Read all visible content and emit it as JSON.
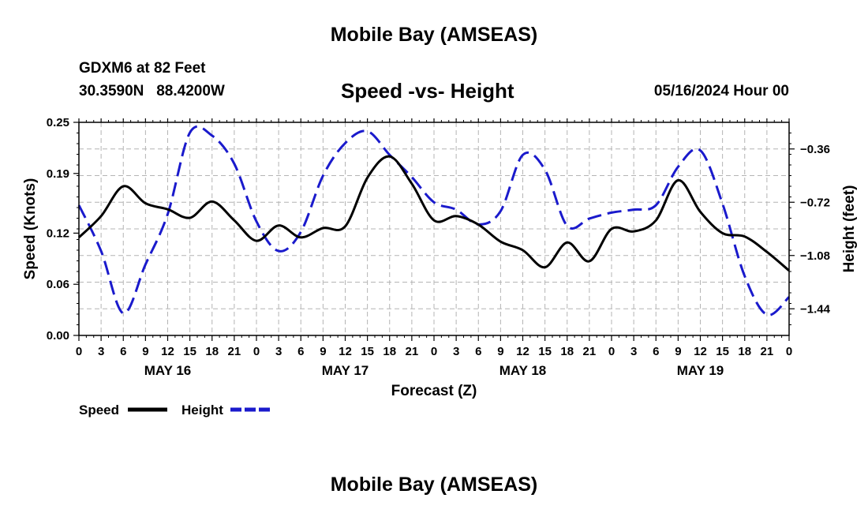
{
  "header": {
    "title": "Mobile Bay (AMSEAS)",
    "station": "GDXM6 at 82 Feet",
    "coords": "30.3590N   88.4200W",
    "subtitle": "Speed -vs- Height",
    "datetime": "05/16/2024 Hour 00"
  },
  "footer": {
    "title": "Mobile Bay (AMSEAS)"
  },
  "legend": {
    "speed_label": "Speed",
    "height_label": "Height"
  },
  "chart_data": {
    "type": "line",
    "title": "Speed -vs- Height",
    "xlabel": "Forecast (Z)",
    "ylabel_left": "Speed (Knots)",
    "ylabel_right": "Height (feet)",
    "xlim": [
      0,
      96
    ],
    "ylim_left": [
      0,
      0.25
    ],
    "ylim_right": [
      -1.62,
      -0.18
    ],
    "x_ticks": [
      0,
      3,
      6,
      9,
      12,
      15,
      18,
      21,
      24,
      27,
      30,
      33,
      36,
      39,
      42,
      45,
      48,
      51,
      54,
      57,
      60,
      63,
      66,
      69,
      72,
      75,
      78,
      81,
      84,
      87,
      90,
      93,
      96
    ],
    "x_tick_labels": [
      "0",
      "3",
      "6",
      "9",
      "12",
      "15",
      "18",
      "21",
      "0",
      "3",
      "6",
      "9",
      "12",
      "15",
      "18",
      "21",
      "0",
      "3",
      "6",
      "9",
      "12",
      "15",
      "18",
      "21",
      "0",
      "3",
      "6",
      "9",
      "12",
      "15",
      "18",
      "21",
      "0"
    ],
    "day_labels": [
      {
        "x": 12,
        "label": "MAY 16"
      },
      {
        "x": 36,
        "label": "MAY 17"
      },
      {
        "x": 60,
        "label": "MAY 18"
      },
      {
        "x": 84,
        "label": "MAY 19"
      }
    ],
    "y_left_ticks": [
      0.0,
      0.06,
      0.12,
      0.19,
      0.25
    ],
    "y_left_tick_labels": [
      "0.00",
      "0.06",
      "0.12",
      "0.19",
      "0.25"
    ],
    "y_right_ticks": [
      -1.44,
      -1.08,
      -0.72,
      -0.36
    ],
    "y_right_tick_labels": [
      "-1.44",
      "-1.08",
      "-0.72",
      "-0.36"
    ],
    "grid": true,
    "legend_position": "bottom-left",
    "series": [
      {
        "name": "Speed",
        "axis": "left",
        "color": "#000000",
        "dash": "solid",
        "x": [
          0,
          3,
          6,
          9,
          12,
          15,
          18,
          21,
          24,
          27,
          30,
          33,
          36,
          39,
          42,
          45,
          48,
          51,
          54,
          57,
          60,
          63,
          66,
          69,
          72,
          75,
          78,
          81,
          84,
          87,
          90,
          93,
          96
        ],
        "values": [
          0.115,
          0.14,
          0.175,
          0.155,
          0.148,
          0.138,
          0.157,
          0.135,
          0.111,
          0.129,
          0.115,
          0.126,
          0.128,
          0.185,
          0.21,
          0.178,
          0.135,
          0.14,
          0.13,
          0.11,
          0.1,
          0.08,
          0.109,
          0.087,
          0.125,
          0.122,
          0.135,
          0.182,
          0.145,
          0.12,
          0.116,
          0.098,
          0.076
        ]
      },
      {
        "name": "Height",
        "axis": "right",
        "color": "#1a1acc",
        "dash": "dashed",
        "x": [
          0,
          3,
          6,
          9,
          12,
          15,
          18,
          21,
          24,
          27,
          30,
          33,
          36,
          39,
          42,
          45,
          48,
          51,
          54,
          57,
          60,
          63,
          66,
          69,
          72,
          75,
          78,
          81,
          84,
          87,
          90,
          93,
          96
        ],
        "values": [
          -0.74,
          -1.05,
          -1.47,
          -1.14,
          -0.8,
          -0.25,
          -0.27,
          -0.46,
          -0.85,
          -1.05,
          -0.92,
          -0.54,
          -0.32,
          -0.24,
          -0.4,
          -0.55,
          -0.72,
          -0.77,
          -0.87,
          -0.78,
          -0.4,
          -0.5,
          -0.88,
          -0.83,
          -0.79,
          -0.77,
          -0.74,
          -0.48,
          -0.37,
          -0.73,
          -1.22,
          -1.48,
          -1.36
        ]
      }
    ]
  }
}
